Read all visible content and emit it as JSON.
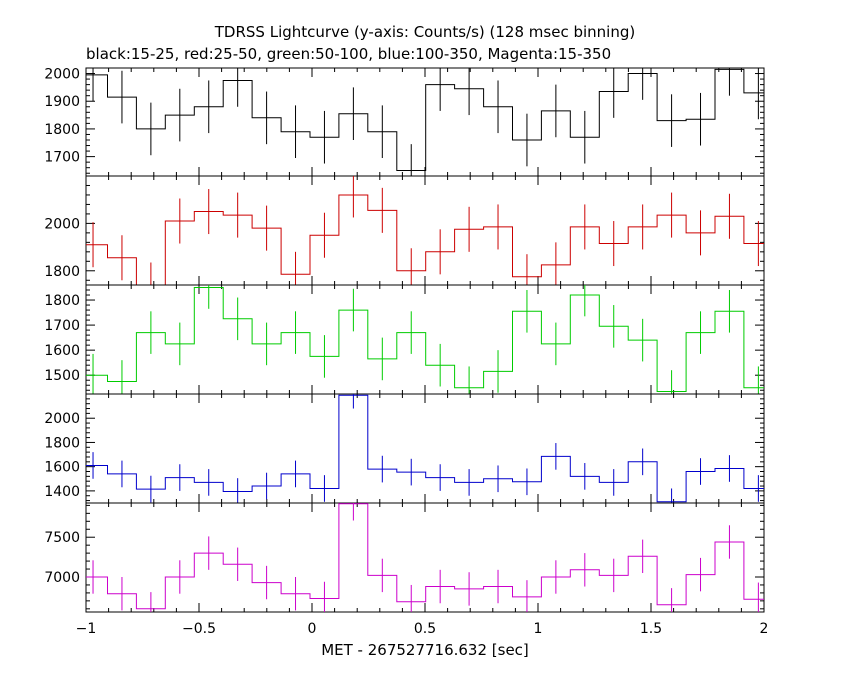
{
  "title": "TDRSS Lightcurve (y-axis: Counts/s) (128 msec binning)",
  "subtitle": "black:15-25, red:25-50, green:50-100, blue:100-350, Magenta:15-350",
  "chart_data": {
    "type": "line",
    "step": true,
    "title": "TDRSS Lightcurve (y-axis: Counts/s) (128 msec binning)",
    "subtitle": "black:15-25, red:25-50, green:50-100, blue:100-350, Magenta:15-350",
    "xlabel": "MET - 267527716.632 [sec]",
    "xlim": [
      -1,
      2
    ],
    "x_ticks": [
      -1,
      -0.5,
      0,
      0.5,
      1,
      1.5,
      2
    ],
    "x_tick_labels": [
      "−1",
      "−0.5",
      "0",
      "0.5",
      "1",
      "1.5",
      "2"
    ],
    "bin_width": 0.128,
    "x": [
      -0.9689,
      -0.8409,
      -0.7129,
      -0.5849,
      -0.4569,
      -0.3289,
      -0.2009,
      -0.0729,
      0.0551,
      0.1831,
      0.3111,
      0.4391,
      0.5671,
      0.6951,
      0.8231,
      0.9511,
      1.0791,
      1.2071,
      1.3351,
      1.4631,
      1.5911,
      1.7191,
      1.8471,
      1.9751
    ],
    "series": [
      {
        "color": "#000000",
        "ylim": [
          1630,
          2020
        ],
        "y_ticks": [
          1700,
          1800,
          1900,
          2000
        ],
        "values": [
          1995,
          1915,
          1800,
          1850,
          1880,
          1975,
          1840,
          1790,
          1770,
          1855,
          1790,
          1650,
          1960,
          1945,
          1880,
          1760,
          1865,
          1770,
          1935,
          2000,
          1830,
          1835,
          2015,
          1930
        ],
        "errors": [
          95,
          95,
          95,
          95,
          95,
          95,
          95,
          95,
          95,
          95,
          95,
          95,
          95,
          95,
          95,
          95,
          95,
          95,
          95,
          95,
          95,
          95,
          95,
          95
        ]
      },
      {
        "color": "#cc0000",
        "ylim": [
          1740,
          2200
        ],
        "y_ticks": [
          1800,
          2000
        ],
        "values": [
          1910,
          1855,
          1740,
          2010,
          2050,
          2035,
          1980,
          1785,
          1950,
          2120,
          2055,
          1800,
          1880,
          1975,
          1985,
          1775,
          1825,
          1985,
          1915,
          1985,
          2035,
          1960,
          2030,
          1915
        ],
        "errors": [
          95,
          95,
          95,
          95,
          95,
          95,
          95,
          95,
          95,
          95,
          95,
          95,
          95,
          95,
          95,
          95,
          95,
          95,
          95,
          95,
          95,
          95,
          95,
          95
        ]
      },
      {
        "color": "#00cc00",
        "ylim": [
          1425,
          1860
        ],
        "y_ticks": [
          1500,
          1600,
          1700,
          1800
        ],
        "values": [
          1500,
          1475,
          1670,
          1625,
          1850,
          1725,
          1625,
          1670,
          1575,
          1760,
          1565,
          1670,
          1540,
          1450,
          1515,
          1755,
          1625,
          1820,
          1695,
          1640,
          1435,
          1670,
          1755,
          1450
        ],
        "errors": [
          85,
          85,
          85,
          85,
          85,
          85,
          85,
          85,
          85,
          85,
          85,
          85,
          85,
          85,
          85,
          85,
          85,
          85,
          85,
          85,
          85,
          85,
          85,
          85
        ]
      },
      {
        "color": "#0000cc",
        "ylim": [
          1300,
          2200
        ],
        "y_ticks": [
          1400,
          1600,
          1800,
          2000
        ],
        "values": [
          1610,
          1540,
          1415,
          1510,
          1470,
          1395,
          1440,
          1540,
          1420,
          2190,
          1580,
          1555,
          1510,
          1470,
          1500,
          1475,
          1685,
          1520,
          1470,
          1640,
          1310,
          1560,
          1585,
          1420
        ],
        "errors": [
          110,
          110,
          110,
          110,
          110,
          110,
          110,
          110,
          110,
          110,
          110,
          110,
          110,
          110,
          110,
          110,
          110,
          110,
          110,
          110,
          110,
          110,
          110,
          110
        ]
      },
      {
        "color": "#cc00cc",
        "ylim": [
          6560,
          7930
        ],
        "y_ticks": [
          7000,
          7500
        ],
        "values": [
          7000,
          6790,
          6600,
          7000,
          7300,
          7160,
          6930,
          6790,
          6730,
          7920,
          7020,
          6690,
          6880,
          6850,
          6880,
          6750,
          7000,
          7090,
          7020,
          7260,
          6650,
          7030,
          7440,
          6720
        ],
        "errors": [
          210,
          210,
          210,
          210,
          210,
          210,
          210,
          210,
          210,
          210,
          210,
          210,
          210,
          210,
          210,
          210,
          210,
          210,
          210,
          210,
          210,
          210,
          210,
          210
        ]
      }
    ]
  }
}
